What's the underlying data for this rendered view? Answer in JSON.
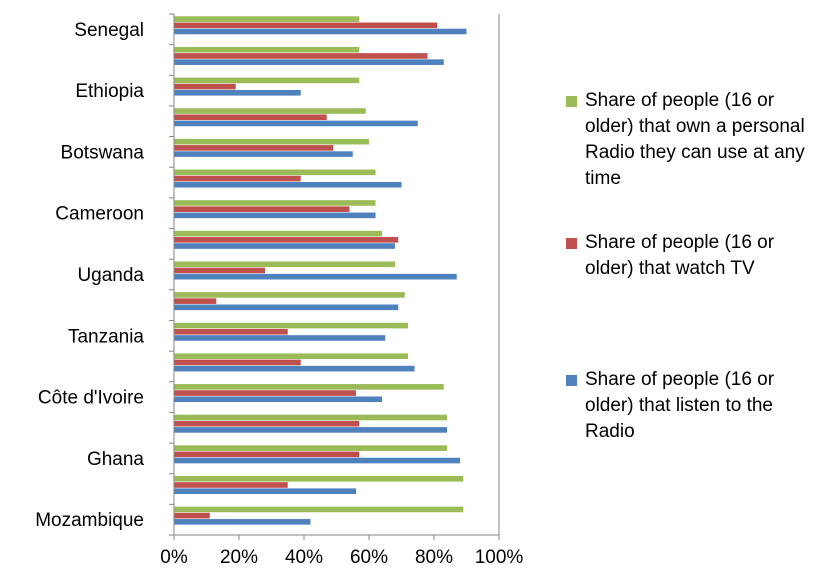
{
  "chart_data": {
    "type": "bar",
    "orientation": "horizontal",
    "title": "",
    "xlabel": "",
    "ylabel": "",
    "xlim": [
      0,
      100
    ],
    "x_ticks": [
      "0%",
      "20%",
      "40%",
      "60%",
      "80%",
      "100%"
    ],
    "grid": false,
    "legend_position": "right",
    "category_labels_shown": [
      "Senegal",
      "Ethiopia",
      "Botswana",
      "Cameroon",
      "Uganda",
      "Tanzania",
      "Côte d'Ivoire",
      "Ghana",
      "Mozambique"
    ],
    "category_label_rows": [
      0,
      2,
      4,
      6,
      8,
      10,
      12,
      14,
      16
    ],
    "row_count": 17,
    "series": [
      {
        "name": "Share of people (16 or older) that own a personal Radio they can use at any time",
        "color": "#9BBB59",
        "values": [
          57,
          57,
          57,
          59,
          60,
          62,
          62,
          64,
          68,
          71,
          72,
          72,
          83,
          84,
          84,
          89,
          89
        ]
      },
      {
        "name": "Share of people (16 or older) that watch TV",
        "color": "#C0504D",
        "values": [
          81,
          78,
          19,
          47,
          49,
          39,
          54,
          69,
          28,
          13,
          35,
          39,
          56,
          57,
          57,
          35,
          11
        ]
      },
      {
        "name": "Share of people (16 or older) that listen to the Radio",
        "color": "#4F81BD",
        "values": [
          90,
          83,
          39,
          75,
          55,
          70,
          62,
          68,
          87,
          69,
          65,
          74,
          64,
          84,
          88,
          56,
          42
        ]
      }
    ]
  },
  "legend": {
    "items": [
      {
        "label": "Share of people (16 or older) that own a personal Radio they can use at any time",
        "color": "#9BBB59"
      },
      {
        "label": "Share of people (16 or older) that watch TV",
        "color": "#C0504D"
      },
      {
        "label": "Share of people (16 or older) that listen to the Radio",
        "color": "#4F81BD"
      }
    ]
  }
}
